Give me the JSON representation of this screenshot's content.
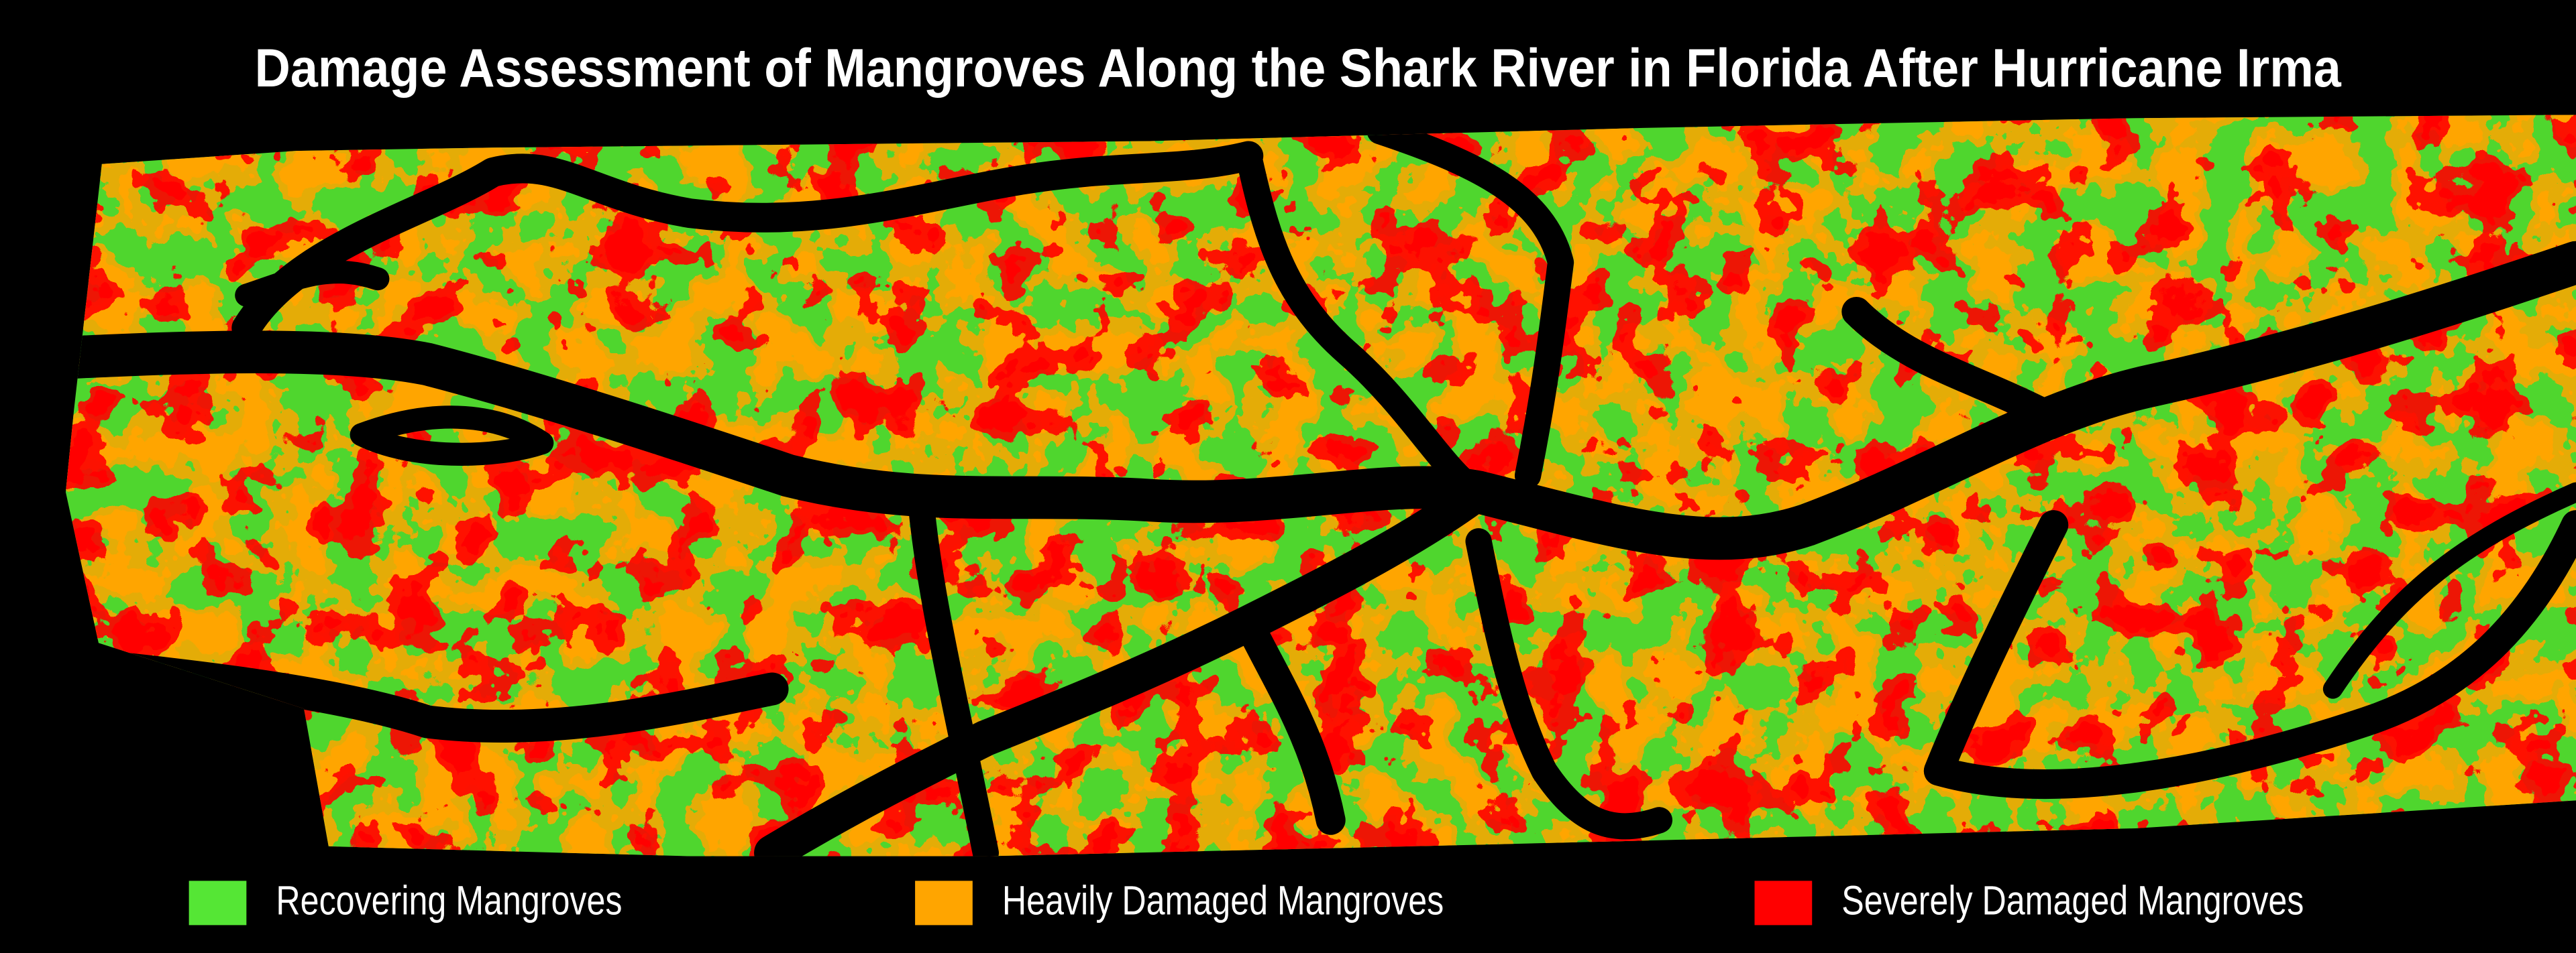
{
  "header": {
    "title": "Damage Assessment of Mangroves Along the Shark River in Florida After Hurricane Irma"
  },
  "legend": {
    "items": [
      {
        "label": "Recovering Mangroves",
        "color": "#55e635"
      },
      {
        "label": "Heavily Damaged Mangroves",
        "color": "#ffa500"
      },
      {
        "label": "Severely Damaged Mangroves",
        "color": "#ff0000"
      }
    ]
  }
}
